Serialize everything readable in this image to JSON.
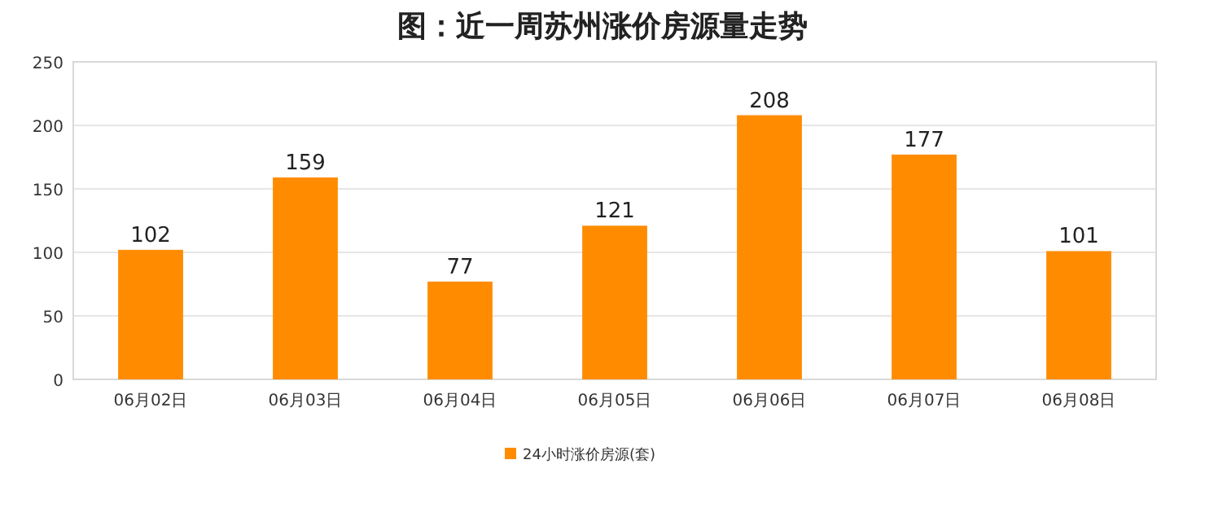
{
  "chart_data": {
    "type": "bar",
    "title": "图：近一周苏州涨价房源量走势",
    "categories": [
      "06月02日",
      "06月03日",
      "06月04日",
      "06月05日",
      "06月06日",
      "06月07日",
      "06月08日"
    ],
    "series": [
      {
        "name": "24小时涨价房源(套)",
        "color": "#ff8c00",
        "values": [
          102,
          159,
          77,
          121,
          208,
          177,
          101
        ]
      }
    ],
    "ylim": [
      0,
      250
    ],
    "yticks": [
      0,
      50,
      100,
      150,
      200,
      250
    ],
    "grid": "y",
    "legend": "bottom",
    "data_labels": true
  }
}
